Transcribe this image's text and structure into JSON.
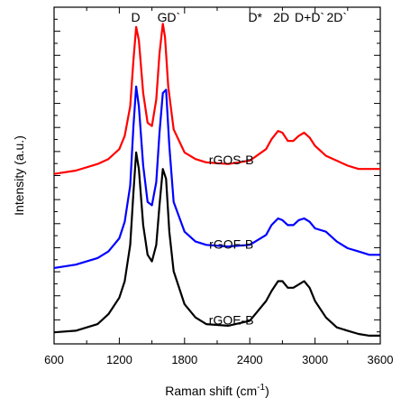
{
  "chart_data": {
    "type": "line",
    "xlabel": "Raman shift (cm",
    "xlabel_sup": "-1",
    "xlabel_end": ")",
    "ylabel": "Intensity (a.u.)",
    "xlim": [
      600,
      3600
    ],
    "xticks": [
      "600",
      "1200",
      "1800",
      "2400",
      "3000",
      "3600"
    ],
    "yticks_shown": false,
    "grid": false,
    "band_labels": [
      {
        "text": "D",
        "x": 1350
      },
      {
        "text": "G",
        "x": 1595
      },
      {
        "text": "D`",
        "x": 1700
      },
      {
        "text": "D*",
        "x": 2450
      },
      {
        "text": "2D",
        "x": 2690
      },
      {
        "text": "D+D`",
        "x": 2950
      },
      {
        "text": "2D`",
        "x": 3200
      }
    ],
    "series": [
      {
        "name": "rGOS-B",
        "color": "#ff0000",
        "label_x": 2230,
        "x": [
          600,
          800,
          1000,
          1100,
          1200,
          1250,
          1300,
          1330,
          1355,
          1380,
          1420,
          1460,
          1500,
          1540,
          1570,
          1600,
          1620,
          1650,
          1700,
          1800,
          1900,
          2000,
          2200,
          2400,
          2550,
          2600,
          2660,
          2700,
          2750,
          2800,
          2850,
          2900,
          2950,
          3000,
          3100,
          3200,
          3300,
          3400,
          3500,
          3600
        ],
        "y": [
          0.155,
          0.165,
          0.185,
          0.2,
          0.23,
          0.27,
          0.36,
          0.5,
          0.6,
          0.56,
          0.4,
          0.31,
          0.3,
          0.38,
          0.52,
          0.61,
          0.57,
          0.42,
          0.29,
          0.22,
          0.2,
          0.19,
          0.185,
          0.195,
          0.23,
          0.26,
          0.285,
          0.28,
          0.255,
          0.255,
          0.27,
          0.28,
          0.265,
          0.24,
          0.21,
          0.195,
          0.18,
          0.17,
          0.17,
          0.17
        ]
      },
      {
        "name": "rGOF-B",
        "color": "#0000ff",
        "label_x": 2230,
        "x": [
          600,
          800,
          1000,
          1100,
          1200,
          1250,
          1300,
          1330,
          1355,
          1380,
          1420,
          1460,
          1500,
          1540,
          1570,
          1600,
          1630,
          1660,
          1700,
          1800,
          1900,
          2000,
          2200,
          2400,
          2550,
          2600,
          2660,
          2700,
          2750,
          2800,
          2850,
          2900,
          2950,
          3000,
          3100,
          3200,
          3300,
          3400,
          3500,
          3600
        ],
        "y": [
          -0.13,
          -0.12,
          -0.1,
          -0.08,
          -0.04,
          0.01,
          0.12,
          0.3,
          0.42,
          0.36,
          0.18,
          0.07,
          0.06,
          0.13,
          0.28,
          0.4,
          0.41,
          0.24,
          0.07,
          -0.02,
          -0.05,
          -0.06,
          -0.065,
          -0.06,
          -0.03,
          0.0,
          0.02,
          0.015,
          0.0,
          0.0,
          0.015,
          0.02,
          0.01,
          -0.01,
          -0.02,
          -0.05,
          -0.07,
          -0.08,
          -0.09,
          -0.09
        ]
      },
      {
        "name": "rGOE-B",
        "color": "#000000",
        "label_x": 2230,
        "x": [
          600,
          800,
          1000,
          1100,
          1200,
          1250,
          1300,
          1330,
          1355,
          1380,
          1420,
          1460,
          1500,
          1540,
          1570,
          1600,
          1630,
          1660,
          1700,
          1800,
          1900,
          2000,
          2200,
          2400,
          2550,
          2600,
          2660,
          2700,
          2750,
          2800,
          2850,
          2900,
          2950,
          3000,
          3100,
          3200,
          3300,
          3400,
          3500,
          3600
        ],
        "y": [
          -0.325,
          -0.32,
          -0.3,
          -0.27,
          -0.22,
          -0.17,
          -0.06,
          0.1,
          0.22,
          0.17,
          0.0,
          -0.09,
          -0.11,
          -0.06,
          0.06,
          0.17,
          0.14,
          -0.02,
          -0.14,
          -0.24,
          -0.28,
          -0.3,
          -0.305,
          -0.29,
          -0.23,
          -0.2,
          -0.17,
          -0.17,
          -0.19,
          -0.19,
          -0.18,
          -0.17,
          -0.19,
          -0.23,
          -0.28,
          -0.31,
          -0.32,
          -0.33,
          -0.335,
          -0.335
        ]
      }
    ]
  }
}
